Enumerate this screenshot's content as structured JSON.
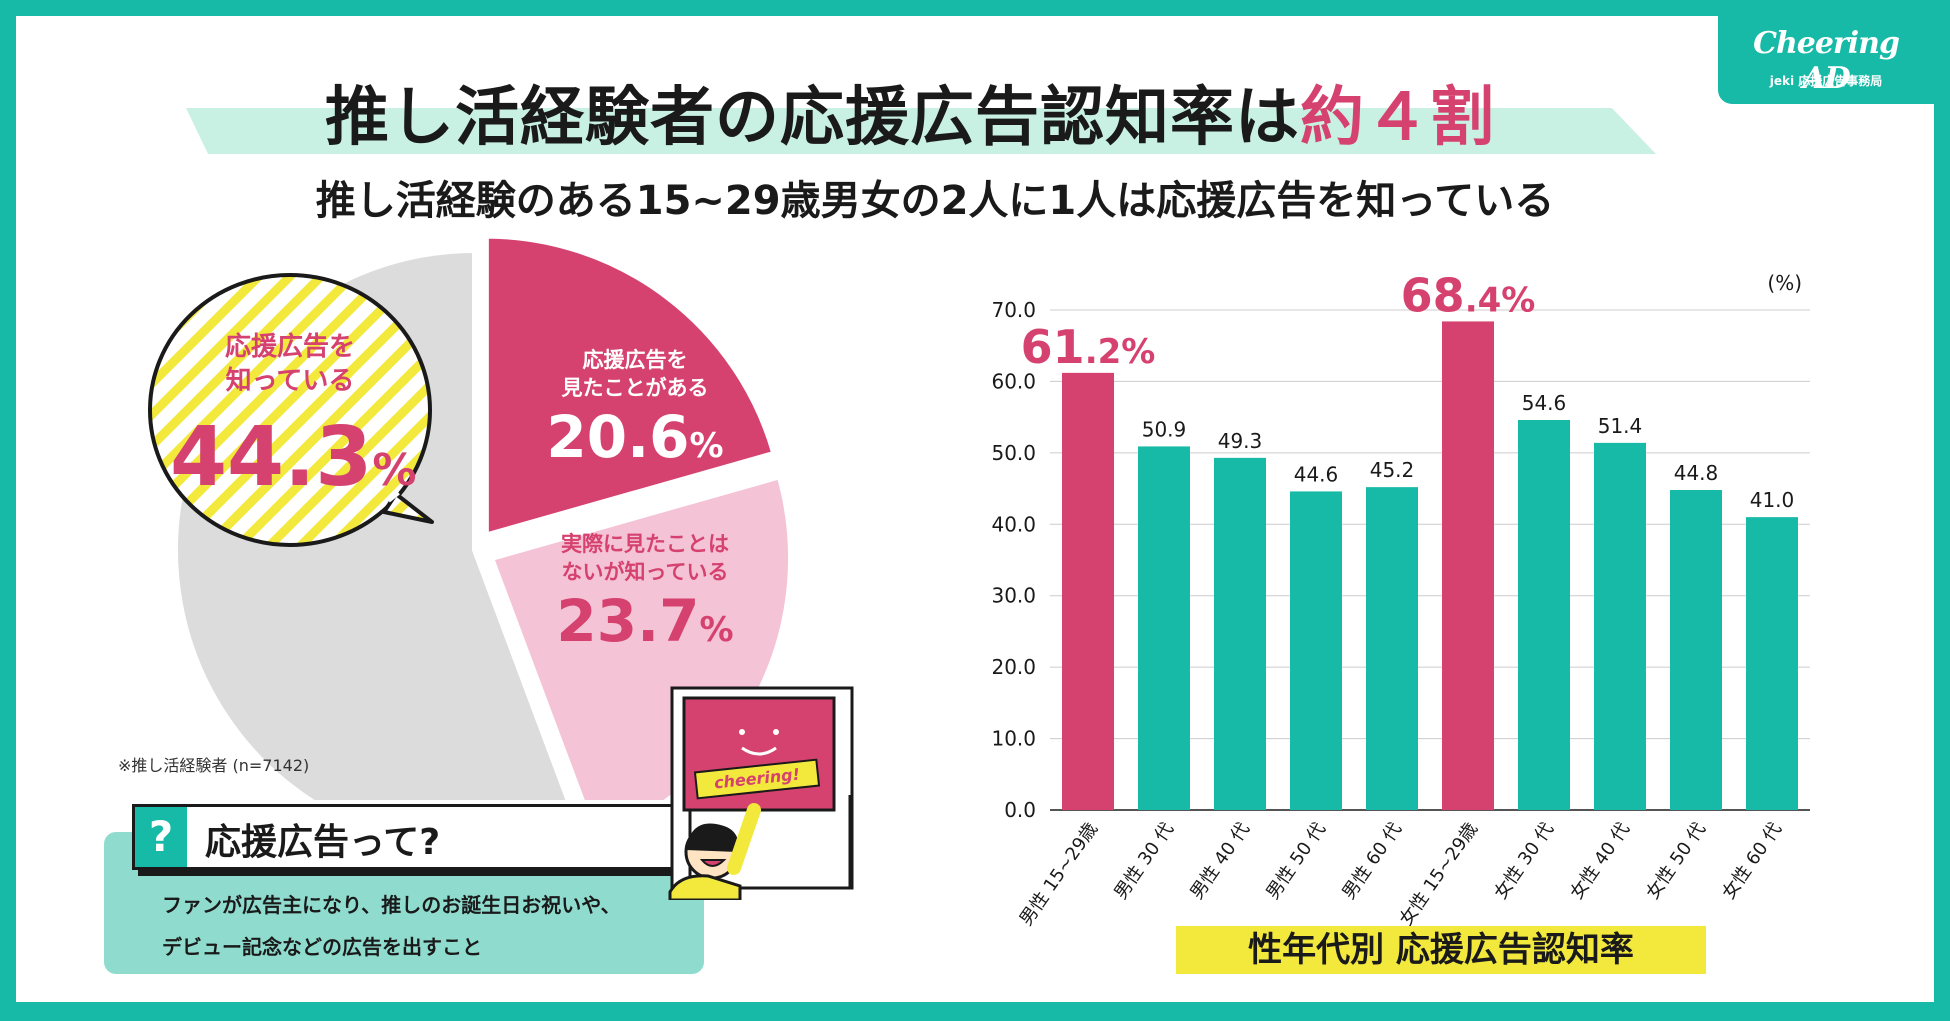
{
  "logo": {
    "main": "Cheering AD",
    "sub": "jeki 応援広告事務局"
  },
  "header": {
    "title_prefix": "推し活経験者の応援広告認知率は",
    "title_accent": "約４割",
    "subtitle": "推し活経験のある15~29歳男女の2人に1人は応援広告を知っている"
  },
  "colors": {
    "brand_teal": "#17b9a7",
    "accent_pink": "#d6426f",
    "light_pink": "#f5c3d6",
    "gray": "#dcdcdc",
    "highlight_yellow": "#f3e93c",
    "mint": "#c8f1e4"
  },
  "pie": {
    "bubble_label_line1": "応援広告を",
    "bubble_label_line2": "知っている",
    "bubble_value": "44.3",
    "bubble_unit": "%",
    "note": "※推し活経験者 (n=7142)",
    "slices": [
      {
        "line1": "応援広告を",
        "line2": "見たことがある",
        "value": "20.6",
        "unit": "%"
      },
      {
        "line1": "実際に見たことは",
        "line2": "ないが知っている",
        "value": "23.7",
        "unit": "%"
      }
    ]
  },
  "info": {
    "q_icon": "?",
    "title": "応援広告って?",
    "body_line1": "ファンが広告主になり、推しのお誕生日お祝いや、",
    "body_line2": "デビュー記念などの広告を出すこと"
  },
  "illustration": {
    "sign_text": "cheering!"
  },
  "chart_data": [
    {
      "type": "pie",
      "values": [
        20.6,
        23.7,
        55.7
      ],
      "labels": [
        "応援広告を見たことがある",
        "実際に見たことはないが知っている",
        ""
      ],
      "colors": [
        "#d6426f",
        "#f5c3d6",
        "#dcdcdc"
      ],
      "note": "※推し活経験者 (n=7142)"
    },
    {
      "type": "bar",
      "categories": [
        "男性 15~29歳",
        "男性 30 代",
        "男性 40 代",
        "男性 50 代",
        "男性 60 代",
        "女性 15~29歳",
        "女性 30 代",
        "女性 40 代",
        "女性 50 代",
        "女性 60 代"
      ],
      "values": [
        61.2,
        50.9,
        49.3,
        44.6,
        45.2,
        68.4,
        54.6,
        51.4,
        44.8,
        41.0
      ],
      "value_labels": [
        "61.2",
        "50.9",
        "49.3",
        "44.6",
        "45.2",
        "68.4",
        "54.6",
        "51.4",
        "44.8",
        "41.0"
      ],
      "highlight": [
        true,
        false,
        false,
        false,
        false,
        true,
        false,
        false,
        false,
        false
      ],
      "highlight_color": "#d6426f",
      "bar_color": "#17b9a7",
      "unit": "(%)",
      "yticks": [
        "0.0",
        "10.0",
        "20.0",
        "30.0",
        "40.0",
        "50.0",
        "60.0",
        "70.0"
      ],
      "ylim": [
        0,
        70
      ],
      "grid": true,
      "caption": "性年代別 応援広告認知率"
    }
  ]
}
